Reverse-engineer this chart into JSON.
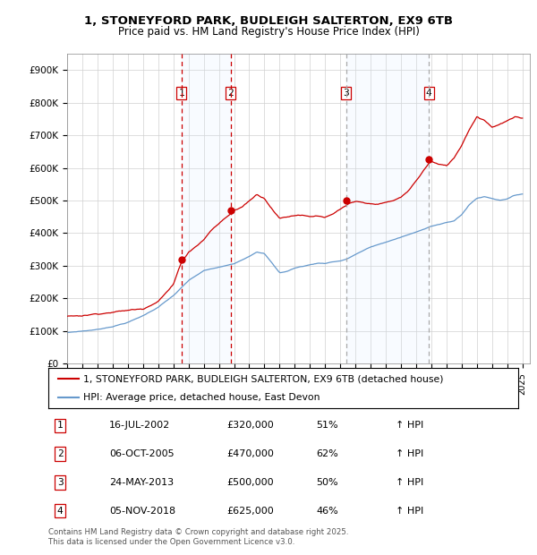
{
  "title_line1": "1, STONEYFORD PARK, BUDLEIGH SALTERTON, EX9 6TB",
  "title_line2": "Price paid vs. HM Land Registry's House Price Index (HPI)",
  "legend_line1": "1, STONEYFORD PARK, BUDLEIGH SALTERTON, EX9 6TB (detached house)",
  "legend_line2": "HPI: Average price, detached house, East Devon",
  "footnote": "Contains HM Land Registry data © Crown copyright and database right 2025.\nThis data is licensed under the Open Government Licence v3.0.",
  "transactions": [
    {
      "num": 1,
      "date": "16-JUL-2002",
      "price": 320000,
      "pct": "51%",
      "dir": "↑",
      "year_x": 2002.54
    },
    {
      "num": 2,
      "date": "06-OCT-2005",
      "price": 470000,
      "pct": "62%",
      "dir": "↑",
      "year_x": 2005.77
    },
    {
      "num": 3,
      "date": "24-MAY-2013",
      "price": 500000,
      "pct": "50%",
      "dir": "↑",
      "year_x": 2013.39
    },
    {
      "num": 4,
      "date": "05-NOV-2018",
      "price": 625000,
      "pct": "46%",
      "dir": "↑",
      "year_x": 2018.84
    }
  ],
  "hpi_color": "#6699cc",
  "price_color": "#cc0000",
  "vline_color": "#cc0000",
  "shade_color": "#ddeeff",
  "ylim": [
    0,
    950000
  ],
  "xlim_start": 1995,
  "xlim_end": 2025.5,
  "yticks": [
    0,
    100000,
    200000,
    300000,
    400000,
    500000,
    600000,
    700000,
    800000,
    900000
  ],
  "ytick_labels": [
    "£0",
    "£100K",
    "£200K",
    "£300K",
    "£400K",
    "£500K",
    "£600K",
    "£700K",
    "£800K",
    "£900K"
  ],
  "hpi_base_points": [
    [
      1995.0,
      95000
    ],
    [
      1996.0,
      100000
    ],
    [
      1997.0,
      105000
    ],
    [
      1998.0,
      115000
    ],
    [
      1999.0,
      128000
    ],
    [
      2000.0,
      148000
    ],
    [
      2001.0,
      175000
    ],
    [
      2002.0,
      210000
    ],
    [
      2003.0,
      255000
    ],
    [
      2004.0,
      285000
    ],
    [
      2005.0,
      295000
    ],
    [
      2006.0,
      305000
    ],
    [
      2007.0,
      330000
    ],
    [
      2007.5,
      345000
    ],
    [
      2008.0,
      340000
    ],
    [
      2008.5,
      310000
    ],
    [
      2009.0,
      280000
    ],
    [
      2009.5,
      285000
    ],
    [
      2010.0,
      295000
    ],
    [
      2010.5,
      300000
    ],
    [
      2011.0,
      305000
    ],
    [
      2011.5,
      310000
    ],
    [
      2012.0,
      310000
    ],
    [
      2012.5,
      315000
    ],
    [
      2013.0,
      318000
    ],
    [
      2013.5,
      325000
    ],
    [
      2014.0,
      338000
    ],
    [
      2015.0,
      360000
    ],
    [
      2016.0,
      375000
    ],
    [
      2017.0,
      390000
    ],
    [
      2018.0,
      405000
    ],
    [
      2018.5,
      415000
    ],
    [
      2019.0,
      425000
    ],
    [
      2019.5,
      430000
    ],
    [
      2020.0,
      435000
    ],
    [
      2020.5,
      440000
    ],
    [
      2021.0,
      460000
    ],
    [
      2021.5,
      490000
    ],
    [
      2022.0,
      510000
    ],
    [
      2022.5,
      515000
    ],
    [
      2023.0,
      510000
    ],
    [
      2023.5,
      505000
    ],
    [
      2024.0,
      510000
    ],
    [
      2024.5,
      520000
    ],
    [
      2025.0,
      525000
    ]
  ],
  "price_base_points": [
    [
      1995.0,
      145000
    ],
    [
      1996.0,
      148000
    ],
    [
      1997.0,
      155000
    ],
    [
      1998.0,
      162000
    ],
    [
      1999.0,
      167000
    ],
    [
      2000.0,
      172000
    ],
    [
      2001.0,
      200000
    ],
    [
      2002.0,
      250000
    ],
    [
      2002.54,
      320000
    ],
    [
      2003.0,
      350000
    ],
    [
      2003.5,
      370000
    ],
    [
      2004.0,
      390000
    ],
    [
      2004.5,
      420000
    ],
    [
      2005.0,
      440000
    ],
    [
      2005.77,
      470000
    ],
    [
      2006.0,
      480000
    ],
    [
      2006.5,
      490000
    ],
    [
      2007.0,
      510000
    ],
    [
      2007.5,
      530000
    ],
    [
      2008.0,
      520000
    ],
    [
      2008.5,
      490000
    ],
    [
      2009.0,
      460000
    ],
    [
      2009.5,
      465000
    ],
    [
      2010.0,
      470000
    ],
    [
      2010.5,
      473000
    ],
    [
      2011.0,
      468000
    ],
    [
      2011.5,
      472000
    ],
    [
      2012.0,
      468000
    ],
    [
      2012.5,
      475000
    ],
    [
      2013.0,
      490000
    ],
    [
      2013.39,
      500000
    ],
    [
      2013.5,
      505000
    ],
    [
      2014.0,
      510000
    ],
    [
      2014.5,
      505000
    ],
    [
      2015.0,
      500000
    ],
    [
      2015.5,
      502000
    ],
    [
      2016.0,
      505000
    ],
    [
      2016.5,
      510000
    ],
    [
      2017.0,
      520000
    ],
    [
      2017.5,
      540000
    ],
    [
      2018.0,
      570000
    ],
    [
      2018.84,
      625000
    ],
    [
      2019.0,
      630000
    ],
    [
      2019.5,
      620000
    ],
    [
      2020.0,
      615000
    ],
    [
      2020.5,
      640000
    ],
    [
      2021.0,
      680000
    ],
    [
      2021.5,
      730000
    ],
    [
      2022.0,
      770000
    ],
    [
      2022.5,
      760000
    ],
    [
      2023.0,
      740000
    ],
    [
      2023.5,
      750000
    ],
    [
      2024.0,
      760000
    ],
    [
      2024.5,
      770000
    ],
    [
      2025.0,
      765000
    ]
  ]
}
